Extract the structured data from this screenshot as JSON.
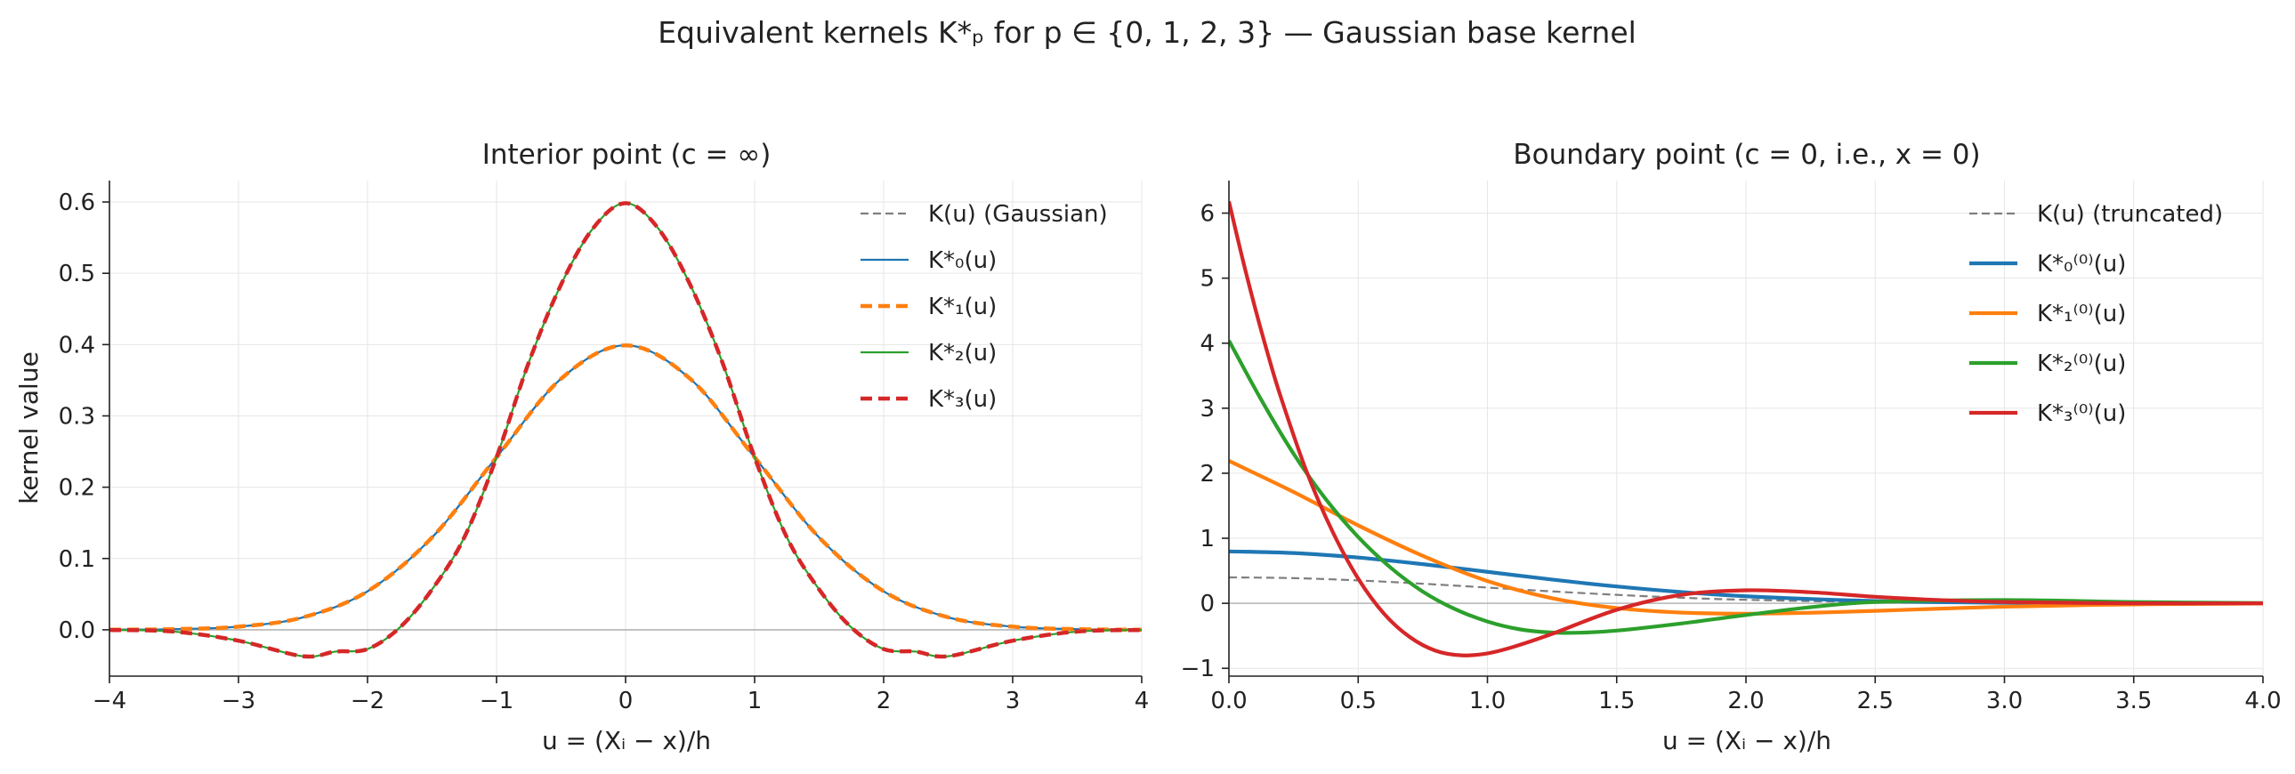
{
  "figure_title": "Equivalent kernels K*ₚ for p ∈ {0, 1, 2, 3} — Gaussian base kernel",
  "chart_data": [
    {
      "type": "line",
      "title": "Interior point (c = ∞)",
      "xlabel": "u = (Xᵢ − x)/h",
      "ylabel": "kernel value",
      "xlim": [
        -4,
        4
      ],
      "ylim": [
        -0.065,
        0.63
      ],
      "xticks": [
        -4,
        -3,
        -2,
        -1,
        0,
        1,
        2,
        3,
        4
      ],
      "xticklabels": [
        "−4",
        "−3",
        "−2",
        "−1",
        "0",
        "1",
        "2",
        "3",
        "4"
      ],
      "yticks": [
        0.0,
        0.1,
        0.2,
        0.3,
        0.4,
        0.5,
        0.6
      ],
      "yticklabels": [
        "0.0",
        "0.1",
        "0.2",
        "0.3",
        "0.4",
        "0.5",
        "0.6"
      ],
      "grid": true,
      "legend_position": "top-right",
      "series": [
        {
          "name": "K(u) (Gaussian)",
          "color": "#7f7f7f",
          "style": "dashed",
          "width": 2.2,
          "x": [
            -4,
            -3.5,
            -3,
            -2.5,
            -2,
            -1.5,
            -1,
            -0.5,
            0,
            0.5,
            1,
            1.5,
            2,
            2.5,
            3,
            3.5,
            4
          ],
          "y": [
            0.0001,
            0.0009,
            0.0044,
            0.0175,
            0.054,
            0.1295,
            0.242,
            0.3521,
            0.3989,
            0.3521,
            0.242,
            0.1295,
            0.054,
            0.0175,
            0.0044,
            0.0009,
            0.0001
          ]
        },
        {
          "name": "K*₀(u)",
          "color": "#1f77b4",
          "style": "solid",
          "width": 2.2,
          "x": [
            -4,
            -3.5,
            -3,
            -2.5,
            -2,
            -1.5,
            -1,
            -0.5,
            0,
            0.5,
            1,
            1.5,
            2,
            2.5,
            3,
            3.5,
            4
          ],
          "y": [
            0.0001,
            0.0009,
            0.0044,
            0.0175,
            0.054,
            0.1295,
            0.242,
            0.3521,
            0.3989,
            0.3521,
            0.242,
            0.1295,
            0.054,
            0.0175,
            0.0044,
            0.0009,
            0.0001
          ]
        },
        {
          "name": "K*₁(u)",
          "color": "#ff7f0e",
          "style": "dashed",
          "width": 4.5,
          "x": [
            -4,
            -3.5,
            -3,
            -2.5,
            -2,
            -1.5,
            -1,
            -0.5,
            0,
            0.5,
            1,
            1.5,
            2,
            2.5,
            3,
            3.5,
            4
          ],
          "y": [
            0.0001,
            0.0009,
            0.0044,
            0.0175,
            0.054,
            0.1295,
            0.242,
            0.3521,
            0.3989,
            0.3521,
            0.242,
            0.1295,
            0.054,
            0.0175,
            0.0044,
            0.0009,
            0.0001
          ]
        },
        {
          "name": "K*₂(u)",
          "color": "#2ca02c",
          "style": "solid",
          "width": 2.2,
          "x": [
            -4,
            -3.5,
            -3,
            -2.5,
            -2.25,
            -2,
            -1.75,
            -1.5,
            -1.25,
            -1,
            -0.75,
            -0.5,
            -0.25,
            0,
            0.25,
            0.5,
            0.75,
            1,
            1.25,
            1.5,
            1.75,
            2,
            2.25,
            2.5,
            3,
            3.5,
            4
          ],
          "y": [
            -0.0003,
            -0.0025,
            -0.0153,
            -0.0371,
            -0.0306,
            -0.027,
            0.0032,
            0.0566,
            0.1296,
            0.242,
            0.3751,
            0.4842,
            0.5636,
            0.5984,
            0.5636,
            0.4842,
            0.3751,
            0.242,
            0.1296,
            0.0566,
            0.0032,
            -0.027,
            -0.0306,
            -0.0371,
            -0.0153,
            -0.0025,
            -0.0003
          ]
        },
        {
          "name": "K*₃(u)",
          "color": "#d62728",
          "style": "dashed",
          "width": 4.5,
          "x": [
            -4,
            -3.5,
            -3,
            -2.5,
            -2.25,
            -2,
            -1.75,
            -1.5,
            -1.25,
            -1,
            -0.75,
            -0.5,
            -0.25,
            0,
            0.25,
            0.5,
            0.75,
            1,
            1.25,
            1.5,
            1.75,
            2,
            2.25,
            2.5,
            3,
            3.5,
            4
          ],
          "y": [
            -0.0003,
            -0.0025,
            -0.0153,
            -0.0371,
            -0.0306,
            -0.027,
            0.0032,
            0.0566,
            0.1296,
            0.242,
            0.3751,
            0.4842,
            0.5636,
            0.5984,
            0.5636,
            0.4842,
            0.3751,
            0.242,
            0.1296,
            0.0566,
            0.0032,
            -0.027,
            -0.0306,
            -0.0371,
            -0.0153,
            -0.0025,
            -0.0003
          ]
        }
      ]
    },
    {
      "type": "line",
      "title": "Boundary point (c = 0, i.e., x = 0)",
      "xlabel": "u = (Xᵢ − x)/h",
      "ylabel": "",
      "xlim": [
        0,
        4
      ],
      "ylim": [
        -1.12,
        6.5
      ],
      "xticks": [
        0,
        0.5,
        1,
        1.5,
        2,
        2.5,
        3,
        3.5,
        4
      ],
      "xticklabels": [
        "0.0",
        "0.5",
        "1.0",
        "1.5",
        "2.0",
        "2.5",
        "3.0",
        "3.5",
        "4.0"
      ],
      "yticks": [
        -1,
        0,
        1,
        2,
        3,
        4,
        5,
        6
      ],
      "yticklabels": [
        "−1",
        "0",
        "1",
        "2",
        "3",
        "4",
        "5",
        "6"
      ],
      "grid": true,
      "legend_position": "top-right",
      "series": [
        {
          "name": "K(u) (truncated)",
          "color": "#7f7f7f",
          "style": "dashed",
          "width": 2.2,
          "x": [
            0,
            0.25,
            0.5,
            0.75,
            1,
            1.25,
            1.5,
            1.75,
            2,
            2.5,
            3,
            3.5,
            4
          ],
          "y": [
            0.399,
            0.387,
            0.352,
            0.301,
            0.242,
            0.183,
            0.13,
            0.086,
            0.054,
            0.0175,
            0.0044,
            0.0009,
            0.0001
          ]
        },
        {
          "name": "K*₀⁽⁰⁾(u)",
          "color": "#1f77b4",
          "style": "solid",
          "width": 4.2,
          "x": [
            0,
            0.25,
            0.5,
            0.75,
            1,
            1.25,
            1.5,
            1.75,
            2,
            2.5,
            3,
            3.5,
            4
          ],
          "y": [
            0.798,
            0.773,
            0.704,
            0.602,
            0.484,
            0.365,
            0.259,
            0.173,
            0.108,
            0.035,
            0.0089,
            0.0017,
            0.0003
          ]
        },
        {
          "name": "K*₁⁽⁰⁾(u)",
          "color": "#ff7f0e",
          "style": "solid",
          "width": 4.2,
          "x": [
            0,
            0.25,
            0.5,
            0.75,
            1,
            1.25,
            1.5,
            1.75,
            2,
            2.25,
            2.5,
            3,
            3.5,
            4
          ],
          "y": [
            2.19,
            1.712,
            1.198,
            0.73,
            0.342,
            0.078,
            -0.073,
            -0.143,
            -0.16,
            -0.145,
            -0.116,
            -0.052,
            -0.0165,
            -0.0036
          ]
        },
        {
          "name": "K*₂⁽⁰⁾(u)",
          "color": "#2ca02c",
          "style": "solid",
          "width": 4.2,
          "x": [
            0,
            0.125,
            0.25,
            0.375,
            0.5,
            0.625,
            0.75,
            0.875,
            1,
            1.125,
            1.25,
            1.375,
            1.5,
            1.75,
            2,
            2.25,
            2.5,
            3,
            3.5,
            4
          ],
          "y": [
            4.04,
            3.13,
            2.3,
            1.6,
            1.02,
            0.55,
            0.18,
            -0.09,
            -0.28,
            -0.4,
            -0.45,
            -0.45,
            -0.42,
            -0.31,
            -0.18,
            -0.06,
            0.02,
            0.05,
            0.02,
            0.003
          ]
        },
        {
          "name": "K*₃⁽⁰⁾(u)",
          "color": "#d62728",
          "style": "solid",
          "width": 4.2,
          "x": [
            0,
            0.05,
            0.1,
            0.15,
            0.2,
            0.3,
            0.4,
            0.5,
            0.6,
            0.7,
            0.8,
            0.9,
            1.0,
            1.1,
            1.25,
            1.5,
            1.75,
            2,
            2.25,
            2.5,
            2.75,
            3,
            3.5,
            4
          ],
          "y": [
            6.18,
            5.34,
            4.56,
            3.84,
            3.18,
            2.03,
            1.11,
            0.38,
            -0.16,
            -0.52,
            -0.73,
            -0.8,
            -0.77,
            -0.67,
            -0.47,
            -0.1,
            0.13,
            0.2,
            0.17,
            0.1,
            0.05,
            0.02,
            0.0,
            0.0
          ]
        }
      ]
    }
  ]
}
